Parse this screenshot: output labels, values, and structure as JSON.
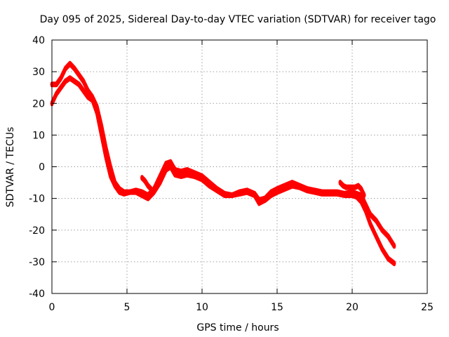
{
  "chart_data": {
    "type": "line",
    "title": "Day 095 of 2025, Sidereal Day-to-day VTEC variation (SDTVAR) for receiver tago",
    "xlabel": "GPS time / hours",
    "ylabel": "SDTVAR / TECUs",
    "xlim": [
      0,
      25
    ],
    "ylim": [
      -40,
      40
    ],
    "x_ticks": [
      0,
      5,
      10,
      15,
      20,
      25
    ],
    "x_tick_labels": [
      "0",
      "5",
      "10",
      "15",
      "20",
      "25"
    ],
    "y_ticks": [
      -40,
      -30,
      -20,
      -10,
      0,
      10,
      20,
      30,
      40
    ],
    "y_tick_labels": [
      "-40",
      "-30",
      "-20",
      "-10",
      "0",
      "10",
      "20",
      "30",
      "40"
    ],
    "grid": true,
    "legend": "none",
    "color": "#ff0000",
    "series": [
      {
        "name": "trace-a",
        "x": [
          0,
          0.3,
          0.6,
          0.9,
          1.2,
          1.5,
          1.8,
          2.1,
          2.4,
          2.7,
          3.0,
          3.3,
          3.6,
          3.9,
          4.2,
          4.5,
          4.8,
          5.2,
          5.6,
          6.0,
          6.4,
          6.8,
          7.2,
          7.6,
          7.9,
          8.2,
          8.6,
          9.0,
          9.5,
          10.0,
          10.5,
          11.0,
          11.5,
          12.0,
          12.5,
          13.0,
          13.5,
          13.8,
          14.2,
          14.6,
          15.0,
          15.5,
          16.0,
          16.5,
          17.0,
          17.5,
          18.0,
          18.5,
          19.0,
          19.5,
          20.0,
          20.3,
          20.6,
          20.9,
          21.2,
          21.6,
          22.0,
          22.4,
          22.8
        ],
        "y": [
          26,
          26,
          28,
          31,
          32.5,
          31,
          29,
          27,
          24,
          22,
          19,
          13,
          6,
          0,
          -5,
          -7,
          -8,
          -8,
          -7.5,
          -8,
          -9,
          -7,
          -3,
          1,
          1.5,
          -1,
          -1.5,
          -1,
          -2,
          -3,
          -5,
          -7,
          -8.5,
          -9,
          -8,
          -7.5,
          -8.5,
          -10.5,
          -10,
          -8,
          -7,
          -6,
          -5,
          -6,
          -7,
          -7.5,
          -8,
          -8,
          -8,
          -8.5,
          -8,
          -8.5,
          -9,
          -12,
          -15,
          -17,
          -20,
          -22,
          -25
        ]
      },
      {
        "name": "trace-b",
        "x": [
          0,
          0.3,
          0.6,
          0.9,
          1.2,
          1.5,
          1.8,
          2.1,
          2.4,
          2.7,
          3.0,
          3.3,
          3.6,
          3.9,
          4.2,
          4.5,
          4.8,
          5.2,
          5.6,
          6.0,
          6.4,
          6.8,
          7.2,
          7.6,
          7.9,
          8.2,
          8.6,
          9.0,
          9.5,
          10.0,
          10.5,
          11.0,
          11.5,
          12.0,
          12.5,
          13.0,
          13.5,
          13.8,
          14.2,
          14.6,
          15.0,
          15.5,
          16.0,
          16.5,
          17.0,
          17.5,
          18.0,
          18.5,
          19.0,
          19.5,
          20.0,
          20.3,
          20.6,
          20.9,
          21.2,
          21.6,
          22.0,
          22.4,
          22.8
        ],
        "y": [
          20,
          23,
          25,
          27,
          28,
          27,
          26,
          24,
          22,
          21,
          17,
          10,
          3,
          -3,
          -6,
          -8,
          -8.5,
          -8,
          -8,
          -9,
          -10,
          -8,
          -5,
          -1,
          0,
          -2.5,
          -3,
          -2.5,
          -3,
          -4,
          -6,
          -7.5,
          -9,
          -9,
          -8.5,
          -8,
          -9,
          -11.5,
          -10.5,
          -9,
          -8,
          -7,
          -6,
          -6.5,
          -7.5,
          -8,
          -8.5,
          -8.5,
          -8.5,
          -9,
          -9,
          -9.5,
          -11,
          -14,
          -18,
          -22,
          -26,
          -29,
          -30.5
        ]
      },
      {
        "name": "trace-c",
        "x": [
          19.2,
          19.4,
          19.6,
          20.2,
          20.4,
          20.6,
          20.8
        ],
        "y": [
          -5,
          -6,
          -6.5,
          -6.5,
          -6,
          -7,
          -9
        ]
      },
      {
        "name": "trace-d",
        "x": [
          6.0,
          6.2,
          6.4,
          6.6
        ],
        "y": [
          -3.5,
          -4.5,
          -6,
          -7
        ]
      }
    ]
  }
}
